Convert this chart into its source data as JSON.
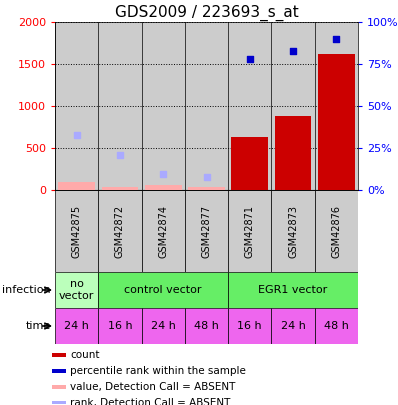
{
  "title": "GDS2009 / 223693_s_at",
  "samples": [
    "GSM42875",
    "GSM42872",
    "GSM42874",
    "GSM42877",
    "GSM42871",
    "GSM42873",
    "GSM42876"
  ],
  "bar_values": [
    null,
    null,
    null,
    null,
    635,
    880,
    1620
  ],
  "bar_absent_values": [
    100,
    40,
    60,
    40,
    null,
    null,
    null
  ],
  "rank_values": [
    null,
    null,
    null,
    null,
    1555,
    1650,
    1800
  ],
  "rank_absent_values": [
    660,
    420,
    185,
    155,
    null,
    null,
    null
  ],
  "ylim_left": [
    0,
    2000
  ],
  "ylim_right": [
    0,
    100
  ],
  "yticks_left": [
    0,
    500,
    1000,
    1500,
    2000
  ],
  "yticks_right": [
    0,
    25,
    50,
    75,
    100
  ],
  "ytick_labels_right": [
    "0%",
    "25%",
    "50%",
    "75%",
    "100%"
  ],
  "infection_groups": [
    {
      "label": "no\nvector",
      "start": 0,
      "end": 1,
      "color": "#bbffbb"
    },
    {
      "label": "control vector",
      "start": 1,
      "end": 4,
      "color": "#66ee66"
    },
    {
      "label": "EGR1 vector",
      "start": 4,
      "end": 7,
      "color": "#66ee66"
    }
  ],
  "time_labels": [
    "24 h",
    "16 h",
    "24 h",
    "48 h",
    "16 h",
    "24 h",
    "48 h"
  ],
  "time_color": "#ee66ee",
  "bar_color": "#cc0000",
  "bar_absent_color": "#ffaaaa",
  "rank_color": "#0000cc",
  "rank_absent_color": "#aaaaff",
  "infection_label": "infection",
  "time_label": "time",
  "legend_items": [
    {
      "color": "#cc0000",
      "label": "count"
    },
    {
      "color": "#0000cc",
      "label": "percentile rank within the sample"
    },
    {
      "color": "#ffaaaa",
      "label": "value, Detection Call = ABSENT"
    },
    {
      "color": "#aaaaff",
      "label": "rank, Detection Call = ABSENT"
    }
  ],
  "sample_area_color": "#cccccc",
  "title_fontsize": 11,
  "tick_fontsize": 8,
  "sample_fontsize": 7
}
